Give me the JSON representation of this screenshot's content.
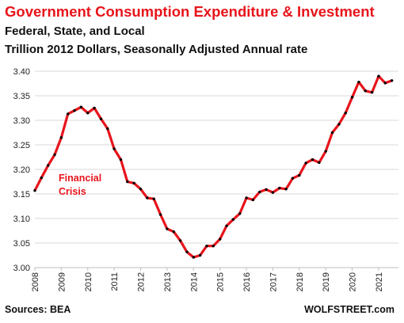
{
  "header": {
    "title": "Government Consumption  Expenditure & Investment",
    "subtitle1": "Federal, State, and Local",
    "subtitle2": "Trillion 2012 Dollars, Seasonally Adjusted Annual rate"
  },
  "footer": {
    "source": "Sources: BEA",
    "brand": "WOLFSTREET.com"
  },
  "colors": {
    "line": "#e8141b",
    "points": "#000000",
    "grid": "#d9d9d9",
    "annotation": "#e8141b"
  },
  "chart_data": {
    "type": "line",
    "title": "Government Consumption  Expenditure & Investment",
    "xlabel": "",
    "ylabel": "",
    "ylim": [
      3.0,
      3.4
    ],
    "yticks": [
      "3.00",
      "3.05",
      "3.10",
      "3.15",
      "3.20",
      "3.25",
      "3.30",
      "3.35",
      "3.40"
    ],
    "xlim": [
      2008,
      2021.75
    ],
    "xticks": [
      "2008",
      "2009",
      "2010",
      "2011",
      "2012",
      "2013",
      "2014",
      "2015",
      "2016",
      "2017",
      "2018",
      "2019",
      "2020",
      "2021"
    ],
    "grid": "horizontal",
    "legend": "none",
    "annotations": [
      {
        "text": "Financial\nCrisis",
        "x": 2008.9,
        "y": 3.16
      }
    ],
    "series": [
      {
        "x": [
          2008.0,
          2008.25,
          2008.5,
          2008.75,
          2009.0,
          2009.25,
          2009.5,
          2009.75,
          2010.0,
          2010.25,
          2010.5,
          2010.75,
          2011.0,
          2011.25,
          2011.5,
          2011.75,
          2012.0,
          2012.25,
          2012.5,
          2012.75,
          2013.0,
          2013.25,
          2013.5,
          2013.75,
          2014.0,
          2014.25,
          2014.5,
          2014.75,
          2015.0,
          2015.25,
          2015.5,
          2015.75,
          2016.0,
          2016.25,
          2016.5,
          2016.75,
          2017.0,
          2017.25,
          2017.5,
          2017.75,
          2018.0,
          2018.25,
          2018.5,
          2018.75,
          2019.0,
          2019.25,
          2019.5,
          2019.75,
          2020.0,
          2020.25,
          2020.5,
          2020.75,
          2021.0,
          2021.25,
          2021.5
        ],
        "values": [
          3.157,
          3.183,
          3.208,
          3.23,
          3.265,
          3.313,
          3.32,
          3.327,
          3.315,
          3.325,
          3.303,
          3.283,
          3.242,
          3.22,
          3.175,
          3.172,
          3.16,
          3.142,
          3.14,
          3.108,
          3.079,
          3.073,
          3.055,
          3.032,
          3.021,
          3.025,
          3.044,
          3.044,
          3.058,
          3.085,
          3.098,
          3.11,
          3.142,
          3.138,
          3.154,
          3.159,
          3.153,
          3.162,
          3.16,
          3.182,
          3.188,
          3.213,
          3.22,
          3.214,
          3.237,
          3.275,
          3.292,
          3.315,
          3.347,
          3.378,
          3.36,
          3.357,
          3.39,
          3.376,
          3.381
        ]
      }
    ]
  }
}
